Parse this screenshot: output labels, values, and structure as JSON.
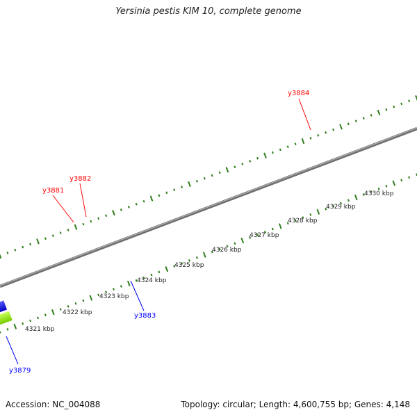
{
  "title": "Yersinia pestis KIM 10, complete genome",
  "footer": {
    "accession": "Accession: NC_004088",
    "topology": "Topology: circular; Length: 4,600,755 bp; Genes: 4,148"
  },
  "colors": {
    "backbone": "#8a8a8a",
    "tick": "#2e7d1a",
    "forward_gene": "#ff1a1a",
    "reverse_gene": "#1a1aff",
    "label_forward": "#ff0000",
    "label_reverse": "#0000ff",
    "steelblue_feature": "#4a7fb0",
    "green_feature": "#99ee22"
  },
  "scale_labels": [
    "4321 kbp",
    "4322 kbp",
    "4323 kbp",
    "4324 kbp",
    "4325 kbp",
    "4326 kbp",
    "4327 kbp",
    "4328 kbp",
    "4329 kbp",
    "4330 kbp"
  ],
  "genes": [
    {
      "label": "y3879",
      "strand": "reverse"
    },
    {
      "label": "y3881",
      "strand": "forward"
    },
    {
      "label": "y3882",
      "strand": "forward"
    },
    {
      "label": "y3883",
      "strand": "reverse"
    },
    {
      "label": "y3884",
      "strand": "forward"
    }
  ]
}
